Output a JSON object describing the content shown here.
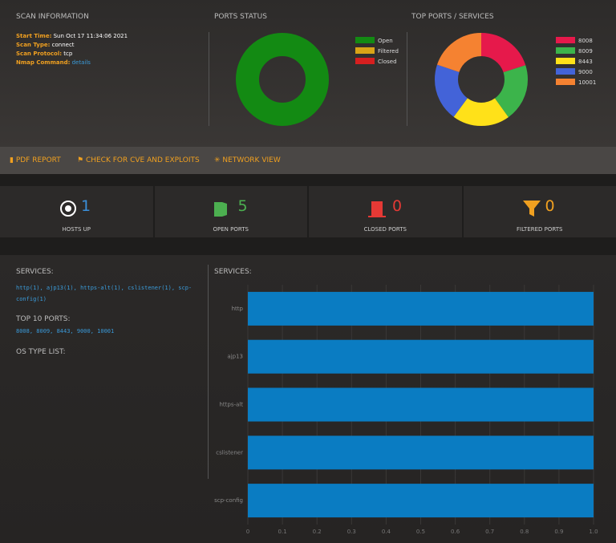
{
  "scan_info": {
    "title": "SCAN INFORMATION",
    "fields": [
      {
        "label": "Start Time:",
        "value": "Sun Oct 17 11:34:06 2021"
      },
      {
        "label": "Scan Type:",
        "value": "connect"
      },
      {
        "label": "Scan Protocol:",
        "value": "tcp"
      }
    ],
    "nmap_label": "Nmap Command:",
    "nmap_link": "details"
  },
  "ports_status": {
    "type": "pie",
    "title": "PORTS STATUS",
    "categories": [
      "Open",
      "Filtered",
      "Closed"
    ],
    "values": [
      5,
      0,
      0
    ],
    "colors": [
      "#138a13",
      "#d9a417",
      "#d61f1f"
    ]
  },
  "top_ports": {
    "type": "pie",
    "title": "TOP PORTS / SERVICES",
    "categories": [
      "8008",
      "8009",
      "8443",
      "9000",
      "10001"
    ],
    "values": [
      1,
      1,
      1,
      1,
      1
    ],
    "colors": [
      "#e6194b",
      "#3cb44b",
      "#ffe119",
      "#4363d8",
      "#f58231"
    ]
  },
  "actions": [
    "PDF REPORT",
    "CHECK FOR CVE AND EXPLOITS",
    "NETWORK VIEW"
  ],
  "stats": [
    {
      "value": 1,
      "label": "HOSTS UP"
    },
    {
      "value": 5,
      "label": "OPEN PORTS"
    },
    {
      "value": 0,
      "label": "CLOSED PORTS"
    },
    {
      "value": 0,
      "label": "FILTERED PORTS"
    }
  ],
  "details": {
    "services_title": "SERVICES:",
    "services_list": "http(1), ajp13(1), https-alt(1), cslistener(1), scp-config(1)",
    "ports_title": "TOP 10 PORTS:",
    "ports_list": "8008, 8009, 8443, 9000, 10001",
    "os_title": "OS TYPE LIST:"
  },
  "services_chart": {
    "type": "bar",
    "title": "SERVICES:",
    "categories": [
      "http",
      "ajp13",
      "https-alt",
      "cslistener",
      "scp-config"
    ],
    "values": [
      1,
      1,
      1,
      1,
      1
    ],
    "color": "#0a7cc2",
    "xlim": [
      0,
      1
    ],
    "xticks": [
      0,
      0.1,
      0.2,
      0.3,
      0.4,
      0.5,
      0.6,
      0.7,
      0.8,
      0.9,
      {
        "value": 1,
        "label": "1.0"
      }
    ],
    "grid": true
  }
}
